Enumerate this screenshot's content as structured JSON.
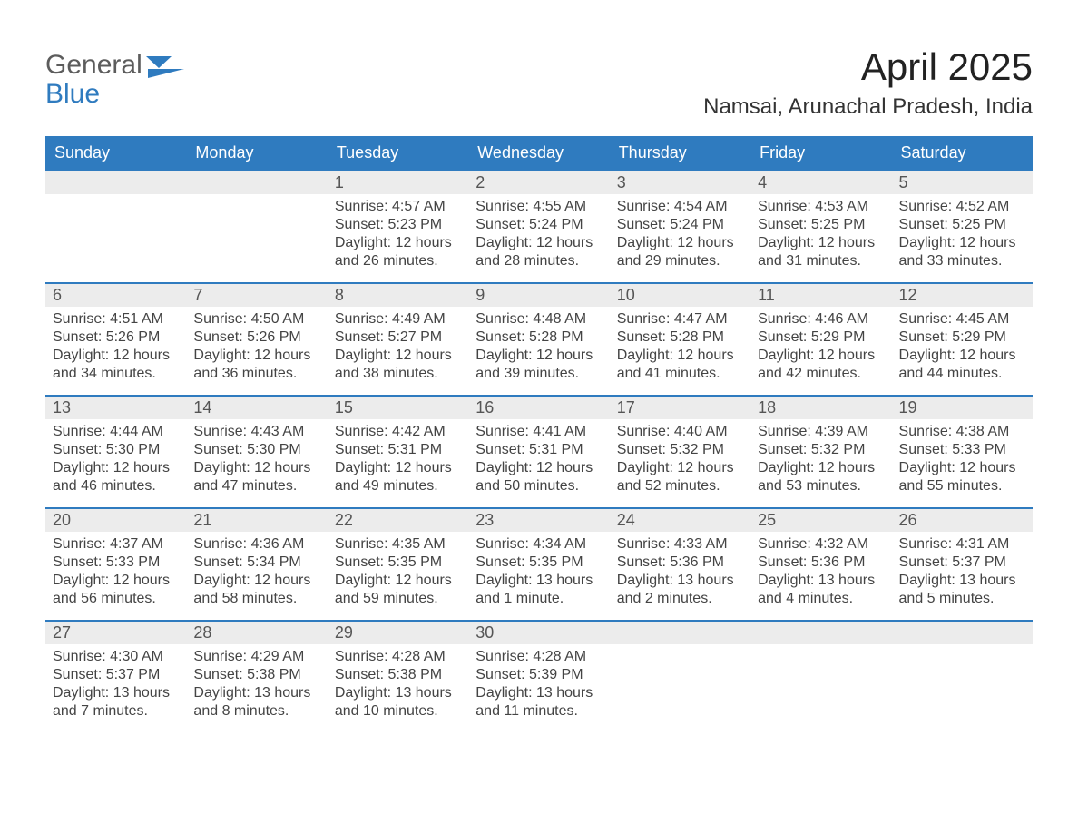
{
  "logo": {
    "word1": "General",
    "word2": "Blue",
    "icon_color": "#2f7bbf",
    "word1_color": "#5c5c5c",
    "word2_color": "#2f7bbf"
  },
  "title": "April 2025",
  "location": "Namsai, Arunachal Pradesh, India",
  "colors": {
    "header_bg": "#2f7bbf",
    "header_text": "#ffffff",
    "daynum_bg": "#ececec",
    "daynum_text": "#555555",
    "body_text": "#444444",
    "week_border": "#2f7bbf",
    "page_bg": "#ffffff"
  },
  "typography": {
    "title_fontsize": 42,
    "location_fontsize": 24,
    "weekday_fontsize": 18,
    "daynum_fontsize": 18,
    "body_fontsize": 16
  },
  "calendar": {
    "type": "table",
    "weekdays": [
      "Sunday",
      "Monday",
      "Tuesday",
      "Wednesday",
      "Thursday",
      "Friday",
      "Saturday"
    ],
    "weeks": [
      [
        {
          "day": "",
          "sunrise": "",
          "sunset": "",
          "daylight": ""
        },
        {
          "day": "",
          "sunrise": "",
          "sunset": "",
          "daylight": ""
        },
        {
          "day": "1",
          "sunrise": "Sunrise: 4:57 AM",
          "sunset": "Sunset: 5:23 PM",
          "daylight": "Daylight: 12 hours and 26 minutes."
        },
        {
          "day": "2",
          "sunrise": "Sunrise: 4:55 AM",
          "sunset": "Sunset: 5:24 PM",
          "daylight": "Daylight: 12 hours and 28 minutes."
        },
        {
          "day": "3",
          "sunrise": "Sunrise: 4:54 AM",
          "sunset": "Sunset: 5:24 PM",
          "daylight": "Daylight: 12 hours and 29 minutes."
        },
        {
          "day": "4",
          "sunrise": "Sunrise: 4:53 AM",
          "sunset": "Sunset: 5:25 PM",
          "daylight": "Daylight: 12 hours and 31 minutes."
        },
        {
          "day": "5",
          "sunrise": "Sunrise: 4:52 AM",
          "sunset": "Sunset: 5:25 PM",
          "daylight": "Daylight: 12 hours and 33 minutes."
        }
      ],
      [
        {
          "day": "6",
          "sunrise": "Sunrise: 4:51 AM",
          "sunset": "Sunset: 5:26 PM",
          "daylight": "Daylight: 12 hours and 34 minutes."
        },
        {
          "day": "7",
          "sunrise": "Sunrise: 4:50 AM",
          "sunset": "Sunset: 5:26 PM",
          "daylight": "Daylight: 12 hours and 36 minutes."
        },
        {
          "day": "8",
          "sunrise": "Sunrise: 4:49 AM",
          "sunset": "Sunset: 5:27 PM",
          "daylight": "Daylight: 12 hours and 38 minutes."
        },
        {
          "day": "9",
          "sunrise": "Sunrise: 4:48 AM",
          "sunset": "Sunset: 5:28 PM",
          "daylight": "Daylight: 12 hours and 39 minutes."
        },
        {
          "day": "10",
          "sunrise": "Sunrise: 4:47 AM",
          "sunset": "Sunset: 5:28 PM",
          "daylight": "Daylight: 12 hours and 41 minutes."
        },
        {
          "day": "11",
          "sunrise": "Sunrise: 4:46 AM",
          "sunset": "Sunset: 5:29 PM",
          "daylight": "Daylight: 12 hours and 42 minutes."
        },
        {
          "day": "12",
          "sunrise": "Sunrise: 4:45 AM",
          "sunset": "Sunset: 5:29 PM",
          "daylight": "Daylight: 12 hours and 44 minutes."
        }
      ],
      [
        {
          "day": "13",
          "sunrise": "Sunrise: 4:44 AM",
          "sunset": "Sunset: 5:30 PM",
          "daylight": "Daylight: 12 hours and 46 minutes."
        },
        {
          "day": "14",
          "sunrise": "Sunrise: 4:43 AM",
          "sunset": "Sunset: 5:30 PM",
          "daylight": "Daylight: 12 hours and 47 minutes."
        },
        {
          "day": "15",
          "sunrise": "Sunrise: 4:42 AM",
          "sunset": "Sunset: 5:31 PM",
          "daylight": "Daylight: 12 hours and 49 minutes."
        },
        {
          "day": "16",
          "sunrise": "Sunrise: 4:41 AM",
          "sunset": "Sunset: 5:31 PM",
          "daylight": "Daylight: 12 hours and 50 minutes."
        },
        {
          "day": "17",
          "sunrise": "Sunrise: 4:40 AM",
          "sunset": "Sunset: 5:32 PM",
          "daylight": "Daylight: 12 hours and 52 minutes."
        },
        {
          "day": "18",
          "sunrise": "Sunrise: 4:39 AM",
          "sunset": "Sunset: 5:32 PM",
          "daylight": "Daylight: 12 hours and 53 minutes."
        },
        {
          "day": "19",
          "sunrise": "Sunrise: 4:38 AM",
          "sunset": "Sunset: 5:33 PM",
          "daylight": "Daylight: 12 hours and 55 minutes."
        }
      ],
      [
        {
          "day": "20",
          "sunrise": "Sunrise: 4:37 AM",
          "sunset": "Sunset: 5:33 PM",
          "daylight": "Daylight: 12 hours and 56 minutes."
        },
        {
          "day": "21",
          "sunrise": "Sunrise: 4:36 AM",
          "sunset": "Sunset: 5:34 PM",
          "daylight": "Daylight: 12 hours and 58 minutes."
        },
        {
          "day": "22",
          "sunrise": "Sunrise: 4:35 AM",
          "sunset": "Sunset: 5:35 PM",
          "daylight": "Daylight: 12 hours and 59 minutes."
        },
        {
          "day": "23",
          "sunrise": "Sunrise: 4:34 AM",
          "sunset": "Sunset: 5:35 PM",
          "daylight": "Daylight: 13 hours and 1 minute."
        },
        {
          "day": "24",
          "sunrise": "Sunrise: 4:33 AM",
          "sunset": "Sunset: 5:36 PM",
          "daylight": "Daylight: 13 hours and 2 minutes."
        },
        {
          "day": "25",
          "sunrise": "Sunrise: 4:32 AM",
          "sunset": "Sunset: 5:36 PM",
          "daylight": "Daylight: 13 hours and 4 minutes."
        },
        {
          "day": "26",
          "sunrise": "Sunrise: 4:31 AM",
          "sunset": "Sunset: 5:37 PM",
          "daylight": "Daylight: 13 hours and 5 minutes."
        }
      ],
      [
        {
          "day": "27",
          "sunrise": "Sunrise: 4:30 AM",
          "sunset": "Sunset: 5:37 PM",
          "daylight": "Daylight: 13 hours and 7 minutes."
        },
        {
          "day": "28",
          "sunrise": "Sunrise: 4:29 AM",
          "sunset": "Sunset: 5:38 PM",
          "daylight": "Daylight: 13 hours and 8 minutes."
        },
        {
          "day": "29",
          "sunrise": "Sunrise: 4:28 AM",
          "sunset": "Sunset: 5:38 PM",
          "daylight": "Daylight: 13 hours and 10 minutes."
        },
        {
          "day": "30",
          "sunrise": "Sunrise: 4:28 AM",
          "sunset": "Sunset: 5:39 PM",
          "daylight": "Daylight: 13 hours and 11 minutes."
        },
        {
          "day": "",
          "sunrise": "",
          "sunset": "",
          "daylight": ""
        },
        {
          "day": "",
          "sunrise": "",
          "sunset": "",
          "daylight": ""
        },
        {
          "day": "",
          "sunrise": "",
          "sunset": "",
          "daylight": ""
        }
      ]
    ]
  }
}
